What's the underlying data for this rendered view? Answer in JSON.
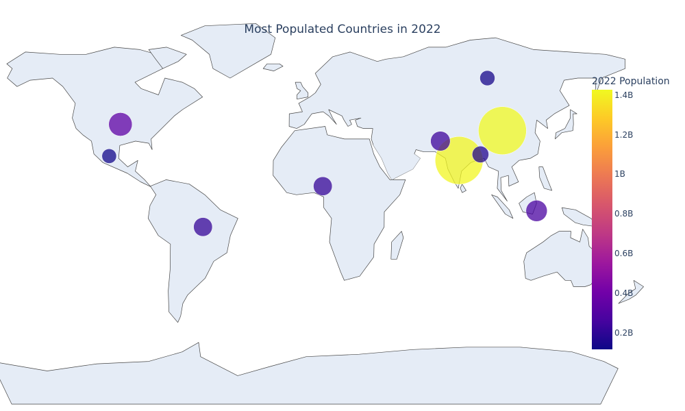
{
  "chart_data": {
    "type": "scatter",
    "projection": "natural earth",
    "title": "Most Populated Countries in 2022",
    "land_color": "#e5ecf6",
    "coastline_color": "#444444",
    "marker_opacity": 0.75,
    "colorbar": {
      "title": "2022 Population",
      "range": [
        0.12,
        1.43
      ],
      "tick_values": [
        0.2,
        0.4,
        0.6,
        0.8,
        1.0,
        1.2,
        1.4
      ],
      "tick_labels": [
        "0.2B",
        "0.4B",
        "0.6B",
        "0.8B",
        "1B",
        "1.2B",
        "1.4B"
      ],
      "colorscale": "plasma"
    },
    "points": [
      {
        "lat": 35.0,
        "lon": 103.0,
        "population_billions": 1.43
      },
      {
        "lat": 21.0,
        "lon": 79.0,
        "population_billions": 1.42
      },
      {
        "lat": 38.0,
        "lon": -98.0,
        "population_billions": 0.34
      },
      {
        "lat": -2.5,
        "lon": 118.0,
        "population_billions": 0.28
      },
      {
        "lat": 30.0,
        "lon": 70.0,
        "population_billions": 0.24
      },
      {
        "lat": 9.0,
        "lon": 8.5,
        "population_billions": 0.22
      },
      {
        "lat": -10.0,
        "lon": -53.0,
        "population_billions": 0.22
      },
      {
        "lat": 23.8,
        "lon": 90.3,
        "population_billions": 0.17
      },
      {
        "lat": 60.0,
        "lon": 100.0,
        "population_billions": 0.14
      },
      {
        "lat": 23.0,
        "lon": -102.0,
        "population_billions": 0.13
      }
    ]
  }
}
